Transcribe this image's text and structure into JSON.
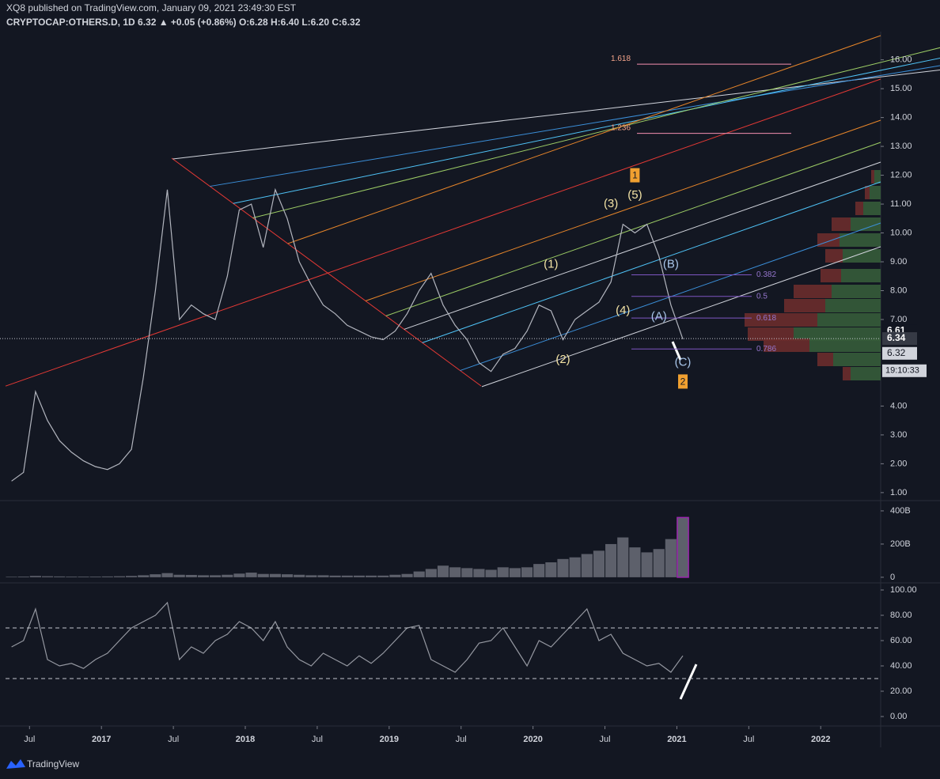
{
  "header": {
    "published": "XQ8 published on TradingView.com, January 09, 2021 23:49:30 EST",
    "symbol_line": "CRYPTOCAP:OTHERS.D, 1D 6.32 ▲ +0.05 (+0.86%) O:6.28 H:6.40 L:6.20 C:6.32"
  },
  "footer": {
    "brand": "TradingView"
  },
  "chart_data": [
    {
      "type": "line",
      "color": "#b2b5be",
      "x": [
        "2016-05",
        "2016-06",
        "2016-07",
        "2016-08",
        "2016-09",
        "2016-10",
        "2016-11",
        "2016-12",
        "2017-01",
        "2017-02",
        "2017-03",
        "2017-04",
        "2017-05",
        "2017-06",
        "2017-07",
        "2017-08",
        "2017-09",
        "2017-10",
        "2017-11",
        "2017-12",
        "2018-01",
        "2018-02",
        "2018-03",
        "2018-04",
        "2018-05",
        "2018-06",
        "2018-07",
        "2018-08",
        "2018-09",
        "2018-10",
        "2018-11",
        "2018-12",
        "2019-01",
        "2019-02",
        "2019-03",
        "2019-04",
        "2019-05",
        "2019-06",
        "2019-07",
        "2019-08",
        "2019-09",
        "2019-10",
        "2019-11",
        "2019-12",
        "2020-01",
        "2020-02",
        "2020-03",
        "2020-04",
        "2020-05",
        "2020-06",
        "2020-07",
        "2020-08",
        "2020-09",
        "2020-10",
        "2020-11",
        "2020-12",
        "2021-01"
      ],
      "values": [
        1.4,
        1.7,
        4.5,
        3.5,
        2.8,
        2.4,
        2.1,
        1.9,
        1.8,
        2.0,
        2.5,
        5.0,
        8.0,
        11.5,
        7.0,
        7.5,
        7.2,
        7.0,
        8.5,
        10.8,
        11.0,
        9.5,
        11.5,
        10.5,
        9.0,
        8.2,
        7.5,
        7.2,
        6.8,
        6.6,
        6.4,
        6.3,
        6.6,
        7.2,
        8.0,
        8.6,
        7.5,
        6.8,
        6.3,
        5.5,
        5.2,
        5.8,
        6.0,
        6.6,
        7.5,
        7.3,
        6.3,
        7.0,
        7.3,
        7.6,
        8.3,
        10.3,
        10.0,
        10.3,
        9.2,
        7.5,
        6.32
      ],
      "xlim": [
        "2016-05",
        "2022-06"
      ],
      "xticks": [
        {
          "value": "2016-07",
          "label": "Jul"
        },
        {
          "value": "2017-01",
          "label": "2017"
        },
        {
          "value": "2017-07",
          "label": "Jul"
        },
        {
          "value": "2018-01",
          "label": "2018"
        },
        {
          "value": "2018-07",
          "label": "Jul"
        },
        {
          "value": "2019-01",
          "label": "2019"
        },
        {
          "value": "2019-07",
          "label": "Jul"
        },
        {
          "value": "2020-01",
          "label": "2020"
        },
        {
          "value": "2020-07",
          "label": "Jul"
        },
        {
          "value": "2021-01",
          "label": "2021"
        },
        {
          "value": "2021-07",
          "label": "Jul"
        },
        {
          "value": "2022-01",
          "label": "2022"
        }
      ],
      "ylim": [
        0.75,
        16.84
      ],
      "yticks": [
        {
          "value": 16,
          "label": "16.00"
        },
        {
          "value": 15,
          "label": "15.00"
        },
        {
          "value": 14,
          "label": "14.00"
        },
        {
          "value": 13,
          "label": "13.00"
        },
        {
          "value": 12,
          "label": "12.00"
        },
        {
          "value": 11,
          "label": "11.00"
        },
        {
          "value": 10,
          "label": "10.00"
        },
        {
          "value": 9,
          "label": "9.00"
        },
        {
          "value": 8,
          "label": "8.00"
        },
        {
          "value": 7,
          "label": "7.00"
        },
        {
          "value": 4,
          "label": "4.00"
        },
        {
          "value": 3,
          "label": "3.00"
        },
        {
          "value": 2,
          "label": "2.00"
        },
        {
          "value": 1,
          "label": "1.00"
        }
      ],
      "last_price": 6.34,
      "price_markers": [
        6.61,
        6.34,
        6.32
      ],
      "countdown": "19:10:33",
      "fib_levels": [
        {
          "ratio": 1.618,
          "price": 15.85
        },
        {
          "ratio": 1.236,
          "price": 13.45
        },
        {
          "ratio": 0.382,
          "price": 8.55
        },
        {
          "ratio": 0.5,
          "price": 7.8
        },
        {
          "ratio": 0.618,
          "price": 7.05
        },
        {
          "ratio": 0.786,
          "price": 5.98
        }
      ],
      "annotations": [
        {
          "text": "(1)",
          "x": "2020-02",
          "y": 8.9,
          "color": "#f3e3a5"
        },
        {
          "text": "(2)",
          "x": "2020-03",
          "y": 5.6,
          "color": "#f3e3a5"
        },
        {
          "text": "(3)",
          "x": "2020-07",
          "y": 11.0,
          "color": "#f3e3a5"
        },
        {
          "text": "(4)",
          "x": "2020-08",
          "y": 7.3,
          "color": "#f3e3a5"
        },
        {
          "text": "(5)",
          "x": "2020-09",
          "y": 11.3,
          "color": "#f3e3a5"
        },
        {
          "text": "(A)",
          "x": "2020-11",
          "y": 7.1,
          "color": "#a9c6ea"
        },
        {
          "text": "(B)",
          "x": "2020-12",
          "y": 8.9,
          "color": "#a9c6ea"
        },
        {
          "text": "(C)",
          "x": "2021-01",
          "y": 5.5,
          "color": "#a9c6ea"
        },
        {
          "text": "1",
          "x": "2020-09",
          "y": 12.0,
          "color": "#f0a030",
          "box": true
        },
        {
          "text": "2",
          "x": "2021-01",
          "y": 4.85,
          "color": "#f0a030",
          "box": true
        }
      ]
    },
    {
      "type": "bar",
      "color": "#5d606b",
      "x": [
        "2016-05",
        "2016-06",
        "2016-07",
        "2016-08",
        "2016-09",
        "2016-10",
        "2016-11",
        "2016-12",
        "2017-01",
        "2017-02",
        "2017-03",
        "2017-04",
        "2017-05",
        "2017-06",
        "2017-07",
        "2017-08",
        "2017-09",
        "2017-10",
        "2017-11",
        "2017-12",
        "2018-01",
        "2018-02",
        "2018-03",
        "2018-04",
        "2018-05",
        "2018-06",
        "2018-07",
        "2018-08",
        "2018-09",
        "2018-10",
        "2018-11",
        "2018-12",
        "2019-01",
        "2019-02",
        "2019-03",
        "2019-04",
        "2019-05",
        "2019-06",
        "2019-07",
        "2019-08",
        "2019-09",
        "2019-10",
        "2019-11",
        "2019-12",
        "2020-01",
        "2020-02",
        "2020-03",
        "2020-04",
        "2020-05",
        "2020-06",
        "2020-07",
        "2020-08",
        "2020-09",
        "2020-10",
        "2020-11",
        "2020-12",
        "2021-01"
      ],
      "values": [
        3,
        4,
        8,
        6,
        5,
        4,
        4,
        4,
        5,
        6,
        8,
        12,
        18,
        25,
        15,
        14,
        12,
        12,
        15,
        22,
        28,
        20,
        20,
        18,
        15,
        12,
        12,
        10,
        10,
        10,
        10,
        10,
        15,
        20,
        35,
        50,
        70,
        60,
        55,
        50,
        45,
        60,
        55,
        60,
        80,
        90,
        110,
        120,
        140,
        160,
        200,
        240,
        180,
        150,
        170,
        230,
        360
      ],
      "ylim": [
        -29,
        457
      ],
      "yticks": [
        0,
        {
          "value": 200,
          "label": "200B"
        },
        {
          "value": 400,
          "label": "400B"
        }
      ]
    },
    {
      "type": "line",
      "color": "#9598a1",
      "x": [
        "2016-05",
        "2016-06",
        "2016-07",
        "2016-08",
        "2016-09",
        "2016-10",
        "2016-11",
        "2016-12",
        "2017-01",
        "2017-02",
        "2017-03",
        "2017-04",
        "2017-05",
        "2017-06",
        "2017-07",
        "2017-08",
        "2017-09",
        "2017-10",
        "2017-11",
        "2017-12",
        "2018-01",
        "2018-02",
        "2018-03",
        "2018-04",
        "2018-05",
        "2018-06",
        "2018-07",
        "2018-08",
        "2018-09",
        "2018-10",
        "2018-11",
        "2018-12",
        "2019-01",
        "2019-02",
        "2019-03",
        "2019-04",
        "2019-05",
        "2019-06",
        "2019-07",
        "2019-08",
        "2019-09",
        "2019-10",
        "2019-11",
        "2019-12",
        "2020-01",
        "2020-02",
        "2020-03",
        "2020-04",
        "2020-05",
        "2020-06",
        "2020-07",
        "2020-08",
        "2020-09",
        "2020-10",
        "2020-11",
        "2020-12",
        "2021-01"
      ],
      "values": [
        55,
        60,
        85,
        45,
        40,
        42,
        38,
        45,
        50,
        60,
        70,
        75,
        80,
        90,
        45,
        55,
        50,
        60,
        65,
        75,
        70,
        60,
        75,
        55,
        45,
        40,
        50,
        45,
        40,
        48,
        42,
        50,
        60,
        70,
        72,
        45,
        40,
        35,
        45,
        58,
        60,
        70,
        55,
        40,
        60,
        55,
        65,
        75,
        85,
        60,
        65,
        50,
        45,
        40,
        42,
        35,
        48
      ],
      "ylim": [
        -7.5,
        105
      ],
      "yticks": [
        {
          "value": 100,
          "label": "100.00"
        },
        {
          "value": 80,
          "label": "80.00"
        },
        {
          "value": 60,
          "label": "60.00"
        },
        {
          "value": 40,
          "label": "40.00"
        },
        {
          "value": 20,
          "label": "20.00"
        },
        {
          "value": 0,
          "label": "0.00"
        }
      ],
      "bands": [
        70,
        30
      ]
    }
  ]
}
